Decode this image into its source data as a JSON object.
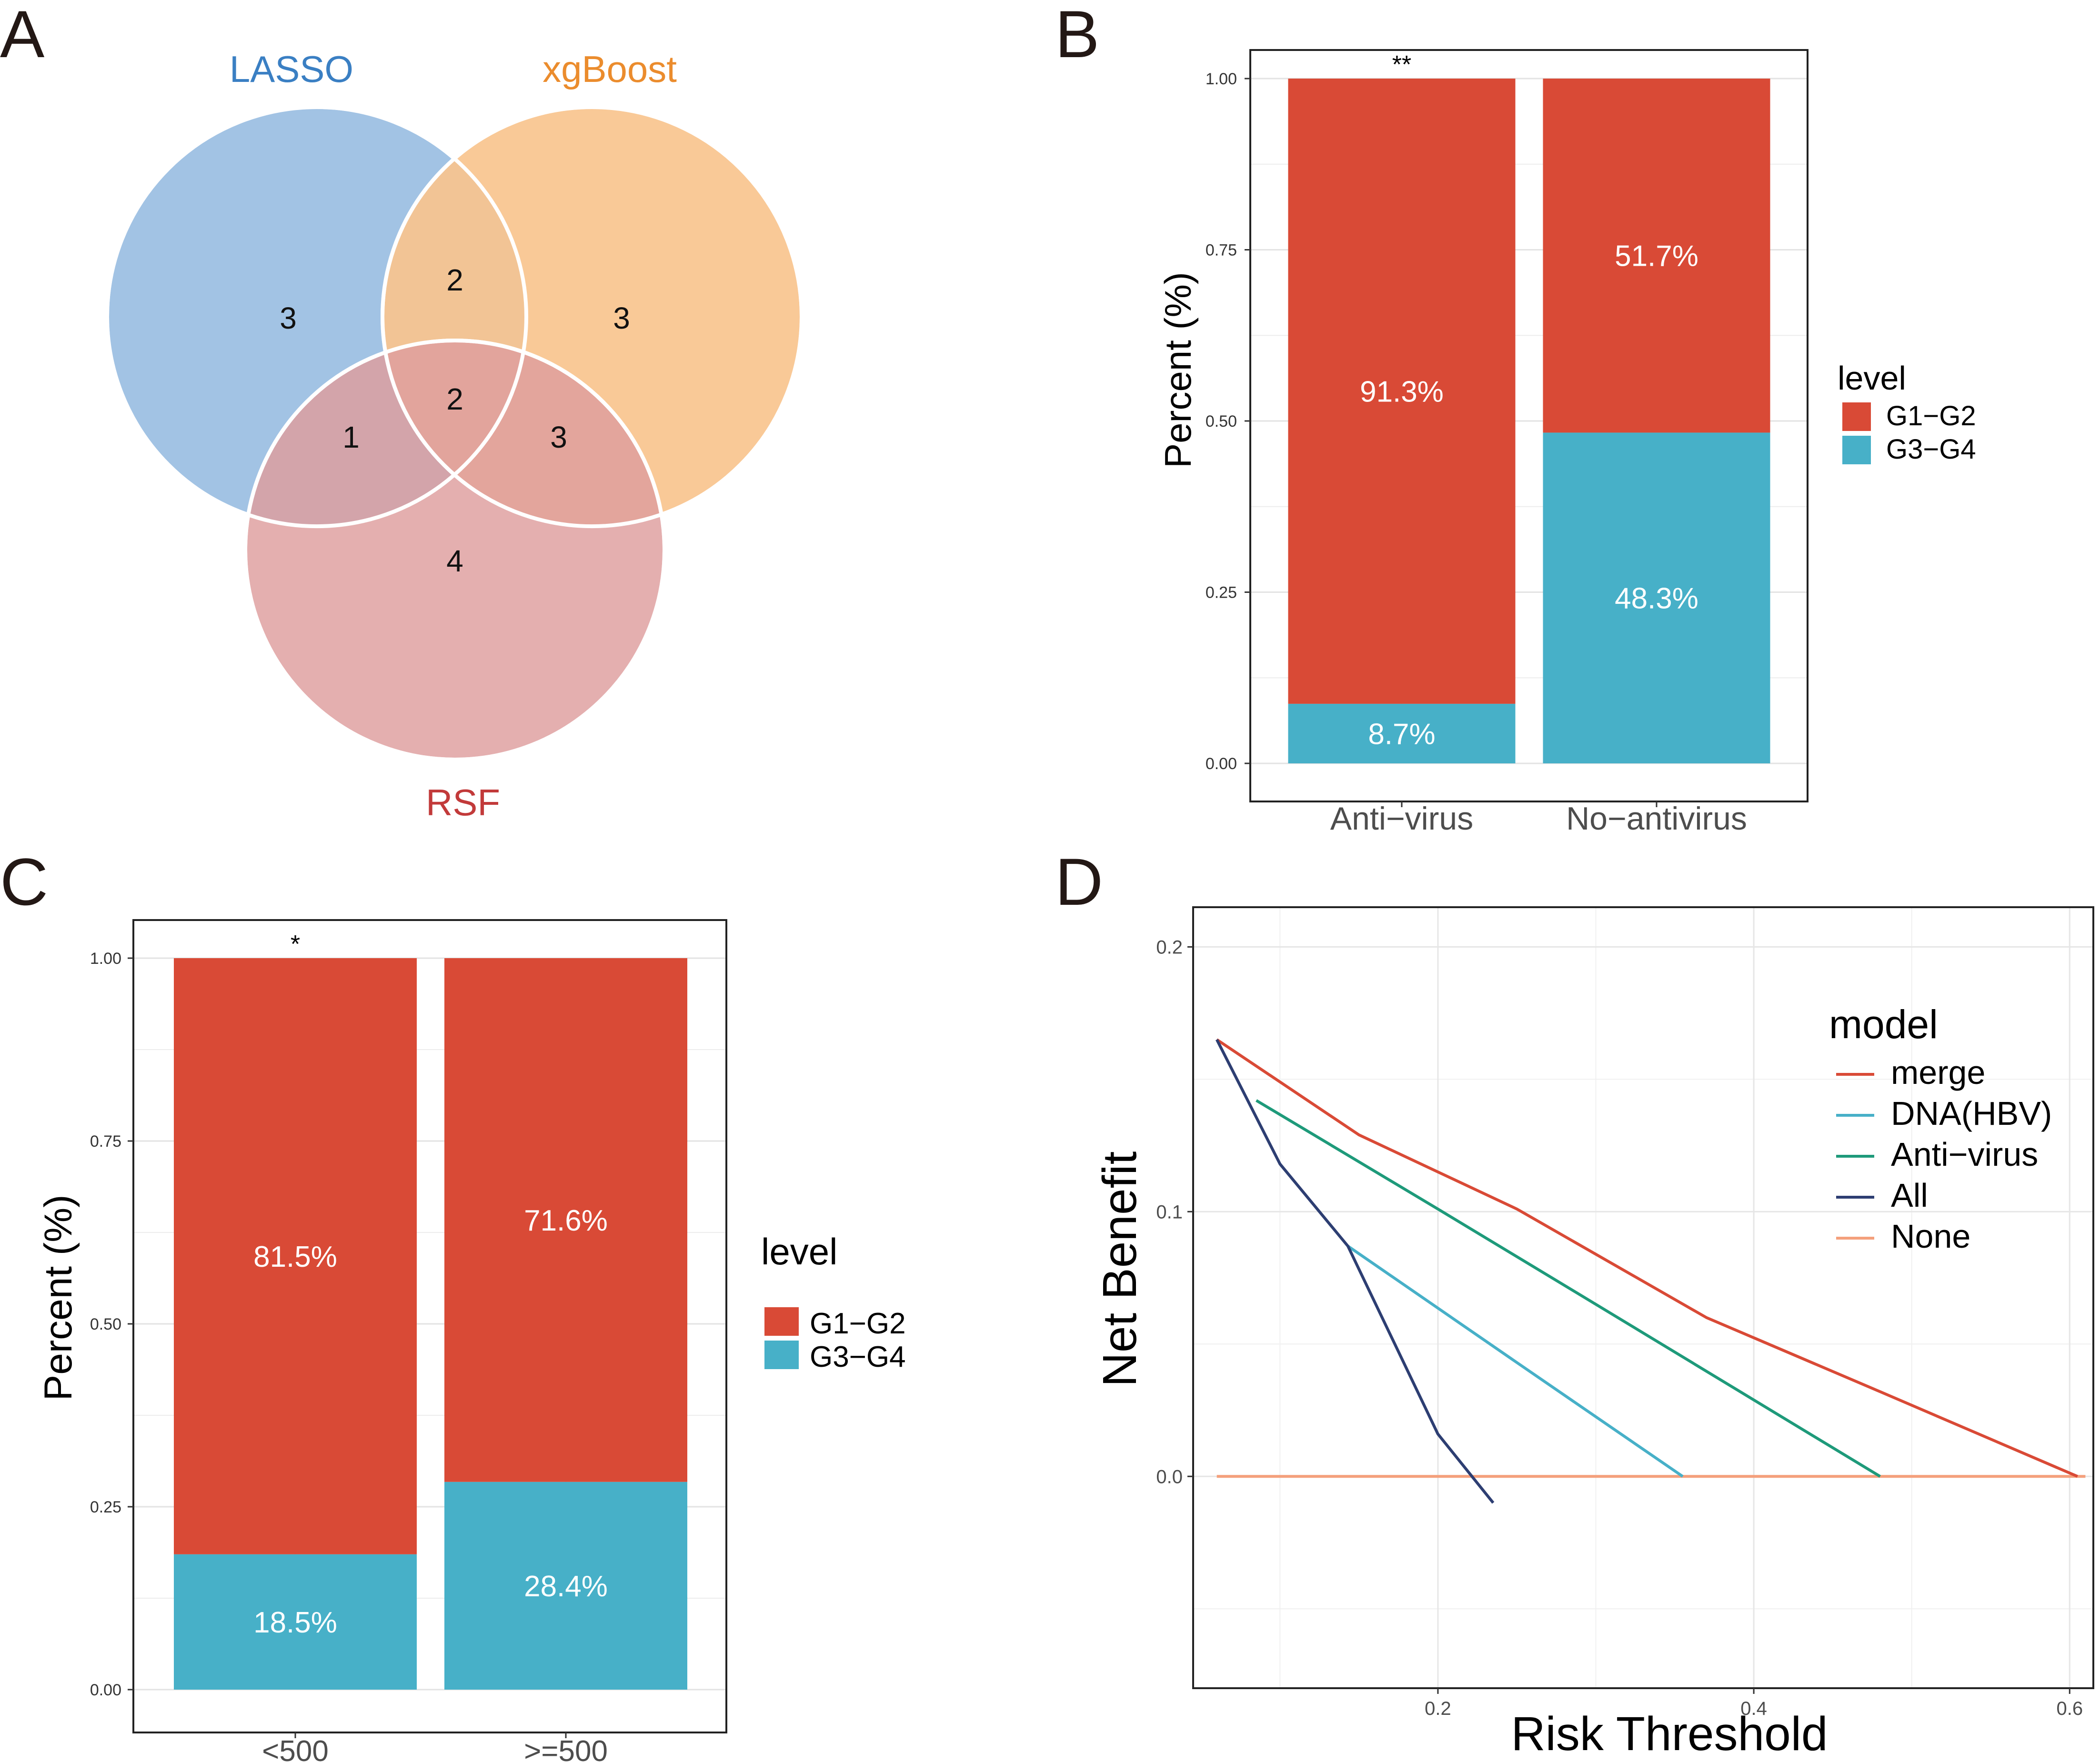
{
  "panels": {
    "A": {
      "letter": "A"
    },
    "B": {
      "letter": "B"
    },
    "C": {
      "letter": "C"
    },
    "D": {
      "letter": "D"
    }
  },
  "colors": {
    "g12": "#D94A36",
    "g34": "#47B0C8",
    "lasso": "#9FC1E3",
    "xgboost": "#F8C48E",
    "rsf": "#DE9E9D",
    "lasso_label": "#3A7FC3",
    "xgboost_label": "#EB8C2D",
    "rsf_label": "#C23A3A",
    "merge": "#D94A36",
    "dna": "#47B0C8",
    "antivirus": "#1E9A7A",
    "all": "#2D3E72",
    "none": "#F4A07C"
  },
  "chart_data": [
    {
      "panel": "A",
      "type": "venn",
      "sets": [
        "LASSO",
        "xgBoost",
        "RSF"
      ],
      "regions": {
        "lasso_only": "3",
        "xgboost_only": "3",
        "rsf_only": "4",
        "lasso_xgboost": "2",
        "lasso_rsf": "1",
        "xgboost_rsf": "3",
        "all_three": "2"
      }
    },
    {
      "panel": "B",
      "type": "bar",
      "stacked": true,
      "categories": [
        "Anti−virus",
        "No−antivirus"
      ],
      "series": [
        {
          "name": "G3−G4",
          "values": [
            0.087,
            0.483
          ],
          "labels": [
            "8.7%",
            "48.3%"
          ]
        },
        {
          "name": "G1−G2",
          "values": [
            0.913,
            0.517
          ],
          "labels": [
            "91.3%",
            "51.7%"
          ]
        }
      ],
      "ylabel": "Percent (%)",
      "ylim": [
        0,
        1
      ],
      "yticks": [
        "0.00",
        "0.25",
        "0.50",
        "0.75",
        "1.00"
      ],
      "legend_title": "level",
      "legend": [
        "G1−G2",
        "G3−G4"
      ],
      "significance": "**"
    },
    {
      "panel": "C",
      "type": "bar",
      "stacked": true,
      "categories": [
        "<500",
        ">=500"
      ],
      "series": [
        {
          "name": "G3−G4",
          "values": [
            0.185,
            0.284
          ],
          "labels": [
            "18.5%",
            "28.4%"
          ]
        },
        {
          "name": "G1−G2",
          "values": [
            0.815,
            0.716
          ],
          "labels": [
            "81.5%",
            "71.6%"
          ]
        }
      ],
      "ylabel": "Percent (%)",
      "ylim": [
        0,
        1
      ],
      "yticks": [
        "0.00",
        "0.25",
        "0.50",
        "0.75",
        "1.00"
      ],
      "legend_title": "level",
      "legend": [
        "G1−G2",
        "G3−G4"
      ],
      "significance": "*"
    },
    {
      "panel": "D",
      "type": "line",
      "xlabel": "Risk Threshold",
      "ylabel": "Net Benefit",
      "xlim": [
        0.045,
        0.615
      ],
      "ylim": [
        -0.08,
        0.215
      ],
      "xticks": [
        0.2,
        0.4,
        0.6
      ],
      "xtick_labels": [
        "0.2",
        "0.4",
        "0.6"
      ],
      "yticks": [
        0.0,
        0.1,
        0.2
      ],
      "ytick_labels": [
        "0.0",
        "0.1",
        "0.2"
      ],
      "legend_title": "model",
      "series": [
        {
          "name": "merge",
          "color_key": "merge",
          "x": [
            0.06,
            0.15,
            0.25,
            0.37,
            0.48,
            0.605
          ],
          "y": [
            0.165,
            0.129,
            0.101,
            0.06,
            0.032,
            0.0
          ]
        },
        {
          "name": "DNA(HBV)",
          "color_key": "dna",
          "x": [
            0.143,
            0.25,
            0.355
          ],
          "y": [
            0.087,
            0.043,
            0.0
          ]
        },
        {
          "name": "Anti−virus",
          "color_key": "antivirus",
          "x": [
            0.085,
            0.2,
            0.3,
            0.48
          ],
          "y": [
            0.142,
            0.101,
            0.065,
            0.0
          ]
        },
        {
          "name": "All",
          "color_key": "all",
          "x": [
            0.06,
            0.1,
            0.143,
            0.2,
            0.235
          ],
          "y": [
            0.165,
            0.118,
            0.087,
            0.016,
            -0.01
          ]
        },
        {
          "name": "None",
          "color_key": "none",
          "x": [
            0.06,
            0.61
          ],
          "y": [
            0.0,
            0.0
          ]
        }
      ]
    }
  ]
}
